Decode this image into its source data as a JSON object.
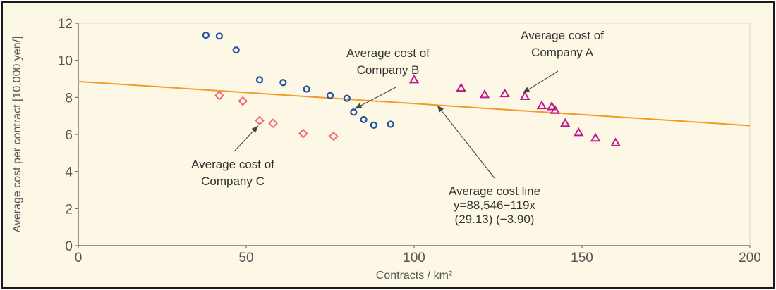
{
  "colors": {
    "background": "#fdf7e6",
    "axis": "#555555",
    "company_a": "#c0188c",
    "company_b": "#1f4f9e",
    "company_c": "#ef5f6e",
    "line": "#f29b2b"
  },
  "chart_data": {
    "type": "scatter",
    "xlabel": "Contracts / km²",
    "ylabel": "Average cost per contract [10,000 yen/]",
    "xlim": [
      0,
      200
    ],
    "ylim": [
      0,
      12
    ],
    "xticks": [
      "0",
      "50",
      "100",
      "150",
      "200"
    ],
    "yticks": [
      "0",
      "2",
      "4",
      "6",
      "8",
      "10",
      "12"
    ],
    "grid": false,
    "series": [
      {
        "marker": "triangle",
        "points": [
          [
            100,
            8.95
          ],
          [
            114,
            8.5
          ],
          [
            121,
            8.15
          ],
          [
            127,
            8.2
          ],
          [
            133,
            8.05
          ],
          [
            138,
            7.55
          ],
          [
            141,
            7.5
          ],
          [
            142,
            7.3
          ],
          [
            145,
            6.6
          ],
          [
            149,
            6.1
          ],
          [
            154,
            5.8
          ],
          [
            160,
            5.55
          ]
        ]
      },
      {
        "marker": "circle",
        "points": [
          [
            38,
            11.35
          ],
          [
            42,
            11.3
          ],
          [
            47,
            10.55
          ],
          [
            54,
            8.95
          ],
          [
            61,
            8.8
          ],
          [
            68,
            8.45
          ],
          [
            75,
            8.1
          ],
          [
            80,
            7.95
          ],
          [
            82,
            7.2
          ],
          [
            85,
            6.8
          ],
          [
            88,
            6.5
          ],
          [
            93,
            6.55
          ]
        ]
      },
      {
        "marker": "diamond",
        "points": [
          [
            42,
            8.1
          ],
          [
            49,
            7.8
          ],
          [
            54,
            6.75
          ],
          [
            58,
            6.6
          ],
          [
            67,
            6.05
          ],
          [
            76,
            5.9
          ]
        ]
      }
    ],
    "trendline": {
      "intercept": 8.8546,
      "slope": -0.0119,
      "x_range": [
        0,
        200
      ]
    },
    "annotations": [
      {
        "id": "a",
        "lines": [
          "Average cost of",
          "Company A"
        ],
        "target": [
          132.5,
          8.25
        ]
      },
      {
        "id": "b",
        "lines": [
          "Average cost of",
          "Company B"
        ],
        "target": [
          82.5,
          7.4
        ]
      },
      {
        "id": "c",
        "lines": [
          "Average cost of",
          "Company C"
        ],
        "target": [
          53.5,
          6.45
        ]
      },
      {
        "id": "line",
        "lines": [
          "Average cost line",
          "y=88,546−119x",
          "(29.13)  (−3.90)"
        ],
        "target": [
          107,
          7.55
        ]
      }
    ]
  }
}
